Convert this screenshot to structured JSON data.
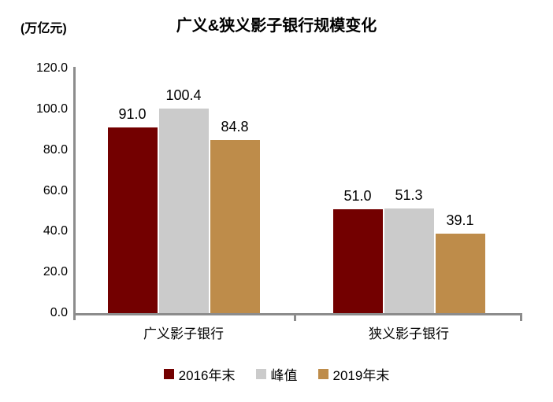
{
  "title": "广义&狭义影子银行规模变化",
  "unit_label": "(万亿元)",
  "colors": {
    "series_2016": "#730000",
    "series_peak": "#CBCBCB",
    "series_2019": "#BE8C4A",
    "axis": "#8C8C8C",
    "text": "#000000",
    "background": "#FFFFFF"
  },
  "chart_data": {
    "type": "bar",
    "title": "广义&狭义影子银行规模变化",
    "ylabel_unit": "(万亿元)",
    "categories": [
      "广义影子银行",
      "狭义影子银行"
    ],
    "series": [
      {
        "name": "2016年末",
        "color": "#730000",
        "values": [
          91.0,
          51.0
        ]
      },
      {
        "name": "峰值",
        "color": "#CBCBCB",
        "values": [
          100.4,
          51.3
        ]
      },
      {
        "name": "2019年末",
        "color": "#BE8C4A",
        "values": [
          84.8,
          39.1
        ]
      }
    ],
    "data_labels": [
      [
        "91.0",
        "51.0"
      ],
      [
        "100.4",
        "51.3"
      ],
      [
        "84.8",
        "39.1"
      ]
    ],
    "ylim": [
      0,
      120
    ],
    "ytick_values": [
      120,
      100,
      80,
      60,
      40,
      20,
      0
    ],
    "ytick_labels": [
      "120.0",
      "100.0",
      "80.0",
      "60.0",
      "40.0",
      "20.0",
      "0.0"
    ],
    "grid": false,
    "legend_position": "bottom"
  }
}
